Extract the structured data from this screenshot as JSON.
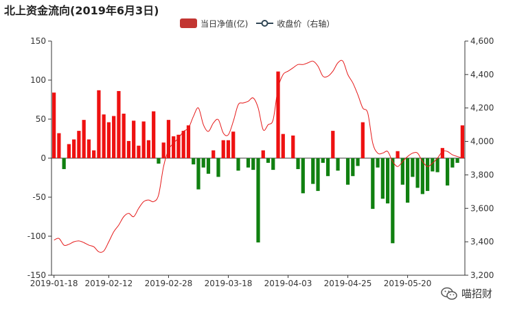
{
  "chart_data": {
    "type": "bar+line",
    "title": "北上资金流向(2019年6月3日)",
    "legend": [
      {
        "name": "当日净值(亿)",
        "kind": "bar",
        "color": "#c23531"
      },
      {
        "name": "收盘价（右轴）",
        "kind": "line",
        "color": "#2f4554"
      }
    ],
    "bar_pos_color": "#ee1111",
    "bar_neg_color": "#108010",
    "line_color": "#e51818",
    "y_left": {
      "min": -150,
      "max": 150,
      "ticks": [
        "150",
        "100",
        "50",
        "0",
        "-50",
        "-100",
        "-150"
      ]
    },
    "y_right": {
      "min": 3200,
      "max": 4600,
      "ticks": [
        "4,600",
        "4,400",
        "4,200",
        "4,000",
        "3,800",
        "3,600",
        "3,400",
        "3,200"
      ]
    },
    "x_tick_labels": [
      {
        "index": 0,
        "label": "2019-01-18"
      },
      {
        "index": 11,
        "label": "2019-02-12"
      },
      {
        "index": 23,
        "label": "2019-02-28"
      },
      {
        "index": 35,
        "label": "2019-03-18"
      },
      {
        "index": 47,
        "label": "2019-04-03"
      },
      {
        "index": 59,
        "label": "2019-04-25"
      },
      {
        "index": 71,
        "label": "2019-05-20"
      }
    ],
    "net_inflow": [
      84,
      32,
      -14,
      18,
      24,
      35,
      49,
      24,
      10,
      87,
      56,
      46,
      54,
      86,
      57,
      22,
      48,
      16,
      47,
      23,
      60,
      -7,
      20,
      49,
      28,
      30,
      35,
      42,
      -8,
      -40,
      -12,
      -20,
      10,
      -24,
      23,
      23,
      34,
      -16,
      0,
      -12,
      -15,
      -108,
      10,
      -6,
      -15,
      111,
      31,
      0,
      29,
      -14,
      -45,
      0,
      -33,
      -42,
      -6,
      -23,
      35,
      -16,
      0,
      -34,
      -23,
      -10,
      46,
      0,
      -65,
      -12,
      -52,
      -58,
      -109,
      9,
      -34,
      -57,
      -24,
      -38,
      -46,
      -42,
      -17,
      -18,
      13,
      -35,
      -12,
      -6,
      42
    ],
    "close_price": [
      3410,
      3420,
      3380,
      3385,
      3400,
      3405,
      3395,
      3380,
      3370,
      3340,
      3345,
      3400,
      3460,
      3500,
      3550,
      3570,
      3550,
      3600,
      3640,
      3650,
      3640,
      3680,
      3850,
      3950,
      3990,
      4020,
      4060,
      4080,
      4150,
      4200,
      4100,
      4060,
      4110,
      4130,
      4050,
      4040,
      4120,
      4220,
      4230,
      4240,
      4260,
      4200,
      4070,
      4100,
      4130,
      4320,
      4400,
      4420,
      4440,
      4460,
      4460,
      4470,
      4480,
      4450,
      4390,
      4390,
      4420,
      4470,
      4480,
      4400,
      4350,
      4280,
      4200,
      4170,
      3990,
      3930,
      3930,
      3940,
      3880,
      3850,
      3880,
      3910,
      3930,
      3930,
      3880,
      3850,
      3870,
      3900,
      3940,
      3940,
      3920,
      3910,
      3900
    ]
  },
  "watermark": {
    "text": "喵招财",
    "icon": "wechat-icon"
  }
}
